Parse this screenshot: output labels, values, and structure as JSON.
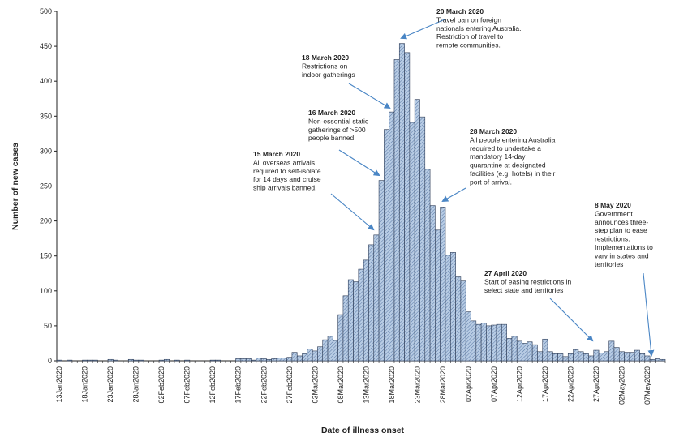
{
  "chart_data": {
    "type": "bar",
    "title": "",
    "xlabel": "Date of illness onset",
    "ylabel": "Number of new cases",
    "ylim": [
      0,
      500
    ],
    "yticks": [
      0,
      50,
      100,
      150,
      200,
      250,
      300,
      350,
      400,
      450,
      500
    ],
    "x_tick_labels": [
      "13Jan2020",
      "18Jan2020",
      "23Jan2020",
      "28Jan2020",
      "02Feb2020",
      "07Feb2020",
      "12Feb2020",
      "17Feb2020",
      "22Feb2020",
      "27Feb2020",
      "03Mar2020",
      "08Mar2020",
      "13Mar2020",
      "18Mar2020",
      "23Mar2020",
      "28Mar2020",
      "02Apr2020",
      "07Apr2020",
      "12Apr2020",
      "17Apr2020",
      "22Apr2020",
      "27Apr2020",
      "02May2020",
      "07May2020"
    ],
    "start_date": "13Jan2020",
    "values": [
      1,
      0,
      1,
      0,
      0,
      1,
      1,
      1,
      0,
      0,
      2,
      1,
      0,
      0,
      2,
      1,
      1,
      0,
      0,
      0,
      1,
      2,
      0,
      1,
      0,
      1,
      0,
      0,
      0,
      0,
      1,
      1,
      0,
      0,
      0,
      3,
      3,
      3,
      1,
      4,
      3,
      2,
      3,
      4,
      4,
      5,
      12,
      7,
      10,
      17,
      14,
      20,
      30,
      35,
      29,
      66,
      93,
      116,
      113,
      131,
      144,
      166,
      180,
      258,
      331,
      356,
      431,
      454,
      441,
      341,
      374,
      349,
      274,
      222,
      187,
      220,
      151,
      155,
      120,
      114,
      70,
      57,
      52,
      54,
      50,
      51,
      52,
      52,
      32,
      35,
      28,
      25,
      27,
      23,
      13,
      31,
      13,
      10,
      10,
      6,
      10,
      16,
      13,
      10,
      7,
      15,
      11,
      13,
      28,
      19,
      13,
      12,
      12,
      15,
      10,
      7,
      2,
      3,
      2
    ]
  },
  "annotations": [
    {
      "id": "a1",
      "title": "15 March 2020",
      "lines": [
        "All overseas arrivals",
        "required to self-isolate",
        "for 14 days and cruise",
        "ship arrivals banned."
      ]
    },
    {
      "id": "a2",
      "title": "16 March 2020",
      "lines": [
        "Non-essential static",
        "gatherings of >500",
        "people banned."
      ]
    },
    {
      "id": "a3",
      "title": "18 March 2020",
      "lines": [
        "Restrictions on",
        "indoor gatherings"
      ]
    },
    {
      "id": "a4",
      "title": "20 March 2020",
      "lines": [
        "Travel ban on foreign",
        "nationals entering Australia.",
        "Restriction of travel to",
        "remote communities."
      ]
    },
    {
      "id": "a5",
      "title": "28 March 2020",
      "lines": [
        "All people entering Australia",
        "required to undertake a",
        "mandatory 14-day",
        "quarantine at designated",
        "facilities (e.g. hotels) in their",
        "port of arrival."
      ]
    },
    {
      "id": "a6",
      "title": "27 April 2020",
      "lines": [
        "Start of easing restrictions in",
        "select state and territories"
      ]
    },
    {
      "id": "a7",
      "title": "8 May 2020",
      "lines": [
        "Government",
        "announces three-",
        "step plan to ease",
        "restrictions.",
        "Implementations to",
        "vary in states and",
        "territories"
      ]
    }
  ],
  "colors": {
    "bar_fill": "#b8cce4",
    "bar_stroke": "#2b3a55",
    "hatch": "#4f6f9f",
    "arrow": "#4a86c5"
  }
}
